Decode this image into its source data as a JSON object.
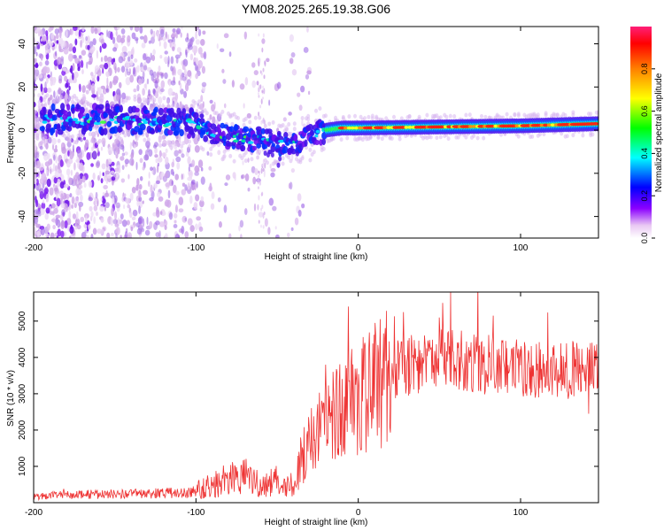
{
  "title": "YM08.2025.265.19.38.G06",
  "chart_data": [
    {
      "type": "heatmap",
      "name": "spectrogram",
      "xlabel": "Height of straight line (km)",
      "ylabel": "Frequency (Hz)",
      "xlim": [
        -200,
        148
      ],
      "ylim": [
        -50,
        48
      ],
      "xticks": [
        -200,
        -100,
        0,
        100
      ],
      "yticks": [
        -40,
        -20,
        0,
        20,
        40
      ],
      "ridge": [
        {
          "x": -180,
          "y": 5
        },
        {
          "x": -150,
          "y": 5
        },
        {
          "x": -120,
          "y": 4
        },
        {
          "x": -100,
          "y": 3
        },
        {
          "x": -90,
          "y": -1
        },
        {
          "x": -80,
          "y": -3
        },
        {
          "x": -70,
          "y": -4
        },
        {
          "x": -60,
          "y": -4
        },
        {
          "x": -50,
          "y": -6
        },
        {
          "x": -40,
          "y": -6
        },
        {
          "x": -30,
          "y": -3
        },
        {
          "x": -20,
          "y": 0
        },
        {
          "x": -10,
          "y": 1
        },
        {
          "x": 0,
          "y": 1
        },
        {
          "x": 50,
          "y": 1.5
        },
        {
          "x": 100,
          "y": 2
        },
        {
          "x": 148,
          "y": 3
        }
      ],
      "colorbar": {
        "label": "Normalized spectral amplitude",
        "range": [
          0,
          1
        ],
        "ticks": [
          "0.0",
          "0.2",
          "0.4",
          "0.6",
          "0.8"
        ]
      }
    },
    {
      "type": "line",
      "name": "snr",
      "xlabel": "Height of straight line (km)",
      "ylabel": "SNR (10 * v/v)",
      "xlim": [
        -200,
        148
      ],
      "ylim": [
        0,
        5800
      ],
      "xticks": [
        -200,
        -100,
        0,
        100
      ],
      "yticks": [
        1000,
        2000,
        3000,
        4000,
        5000
      ],
      "color": "#ee3333",
      "envelope": [
        {
          "x": -200,
          "y": 160
        },
        {
          "x": -180,
          "y": 220
        },
        {
          "x": -160,
          "y": 230
        },
        {
          "x": -140,
          "y": 240
        },
        {
          "x": -120,
          "y": 260
        },
        {
          "x": -100,
          "y": 300
        },
        {
          "x": -90,
          "y": 500
        },
        {
          "x": -80,
          "y": 700
        },
        {
          "x": -70,
          "y": 750
        },
        {
          "x": -60,
          "y": 450
        },
        {
          "x": -50,
          "y": 600
        },
        {
          "x": -45,
          "y": 400
        },
        {
          "x": -40,
          "y": 500
        },
        {
          "x": -30,
          "y": 1700
        },
        {
          "x": -20,
          "y": 2300
        },
        {
          "x": -10,
          "y": 2600
        },
        {
          "x": 0,
          "y": 2900
        },
        {
          "x": 10,
          "y": 3100
        },
        {
          "x": 20,
          "y": 3600
        },
        {
          "x": 40,
          "y": 3900
        },
        {
          "x": 60,
          "y": 3950
        },
        {
          "x": 80,
          "y": 3800
        },
        {
          "x": 100,
          "y": 3700
        },
        {
          "x": 120,
          "y": 3650
        },
        {
          "x": 148,
          "y": 3650
        }
      ],
      "spikes": [
        {
          "x": -20,
          "y": 3800
        },
        {
          "x": -6,
          "y": 5400
        },
        {
          "x": 28,
          "y": 5250
        },
        {
          "x": 52,
          "y": 5500
        },
        {
          "x": 57,
          "y": 5800
        },
        {
          "x": 83,
          "y": 5150
        },
        {
          "x": 142,
          "y": 2450
        }
      ]
    }
  ]
}
